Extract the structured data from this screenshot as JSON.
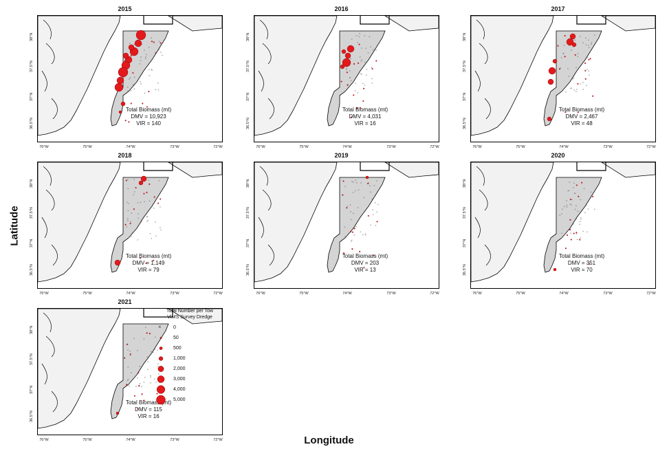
{
  "figure": {
    "ylabel": "Latitude",
    "xlabel": "Longitude",
    "x_ticks": [
      "76°W",
      "75°W",
      "74°W",
      "73°W",
      "72°W"
    ],
    "y_ticks": [
      "38°N",
      "37.5°N",
      "37°N",
      "36.5°N"
    ],
    "biomass_title": "Total Biomass (mt)",
    "colors": {
      "catch": "#e3191c",
      "catch_edge": "#7a0000",
      "land": "#f2f2f2",
      "survey_area": "#d4d4d4",
      "zero_marker": "#555555"
    }
  },
  "panels": [
    {
      "year": "2015",
      "dmv": "DMV = 10,923",
      "vir": "VIR = 140"
    },
    {
      "year": "2016",
      "dmv": "DMV = 4,031",
      "vir": "VIR = 16"
    },
    {
      "year": "2017",
      "dmv": "DMV = 2,467",
      "vir": "VIR = 48"
    },
    {
      "year": "2018",
      "dmv": "DMV = 1,149",
      "vir": "VIR = 79"
    },
    {
      "year": "2019",
      "dmv": "DMV = 203",
      "vir": "VIR = 13"
    },
    {
      "year": "2020",
      "dmv": "DMV = 351",
      "vir": "VIR = 70"
    },
    {
      "year": "2021",
      "dmv": "DMV = 115",
      "vir": "VIR = 16"
    }
  ],
  "legend": {
    "title_line1": "Total Number per Tow",
    "title_line2": "VIMS Survey Dredge",
    "items": [
      {
        "label": "0",
        "value": 0
      },
      {
        "label": "50",
        "value": 50
      },
      {
        "label": "500",
        "value": 500
      },
      {
        "label": "1,000",
        "value": 1000
      },
      {
        "label": "2,000",
        "value": 2000
      },
      {
        "label": "3,000",
        "value": 3000
      },
      {
        "label": "4,000",
        "value": 4000
      },
      {
        "label": "5,000",
        "value": 5000
      }
    ]
  }
}
